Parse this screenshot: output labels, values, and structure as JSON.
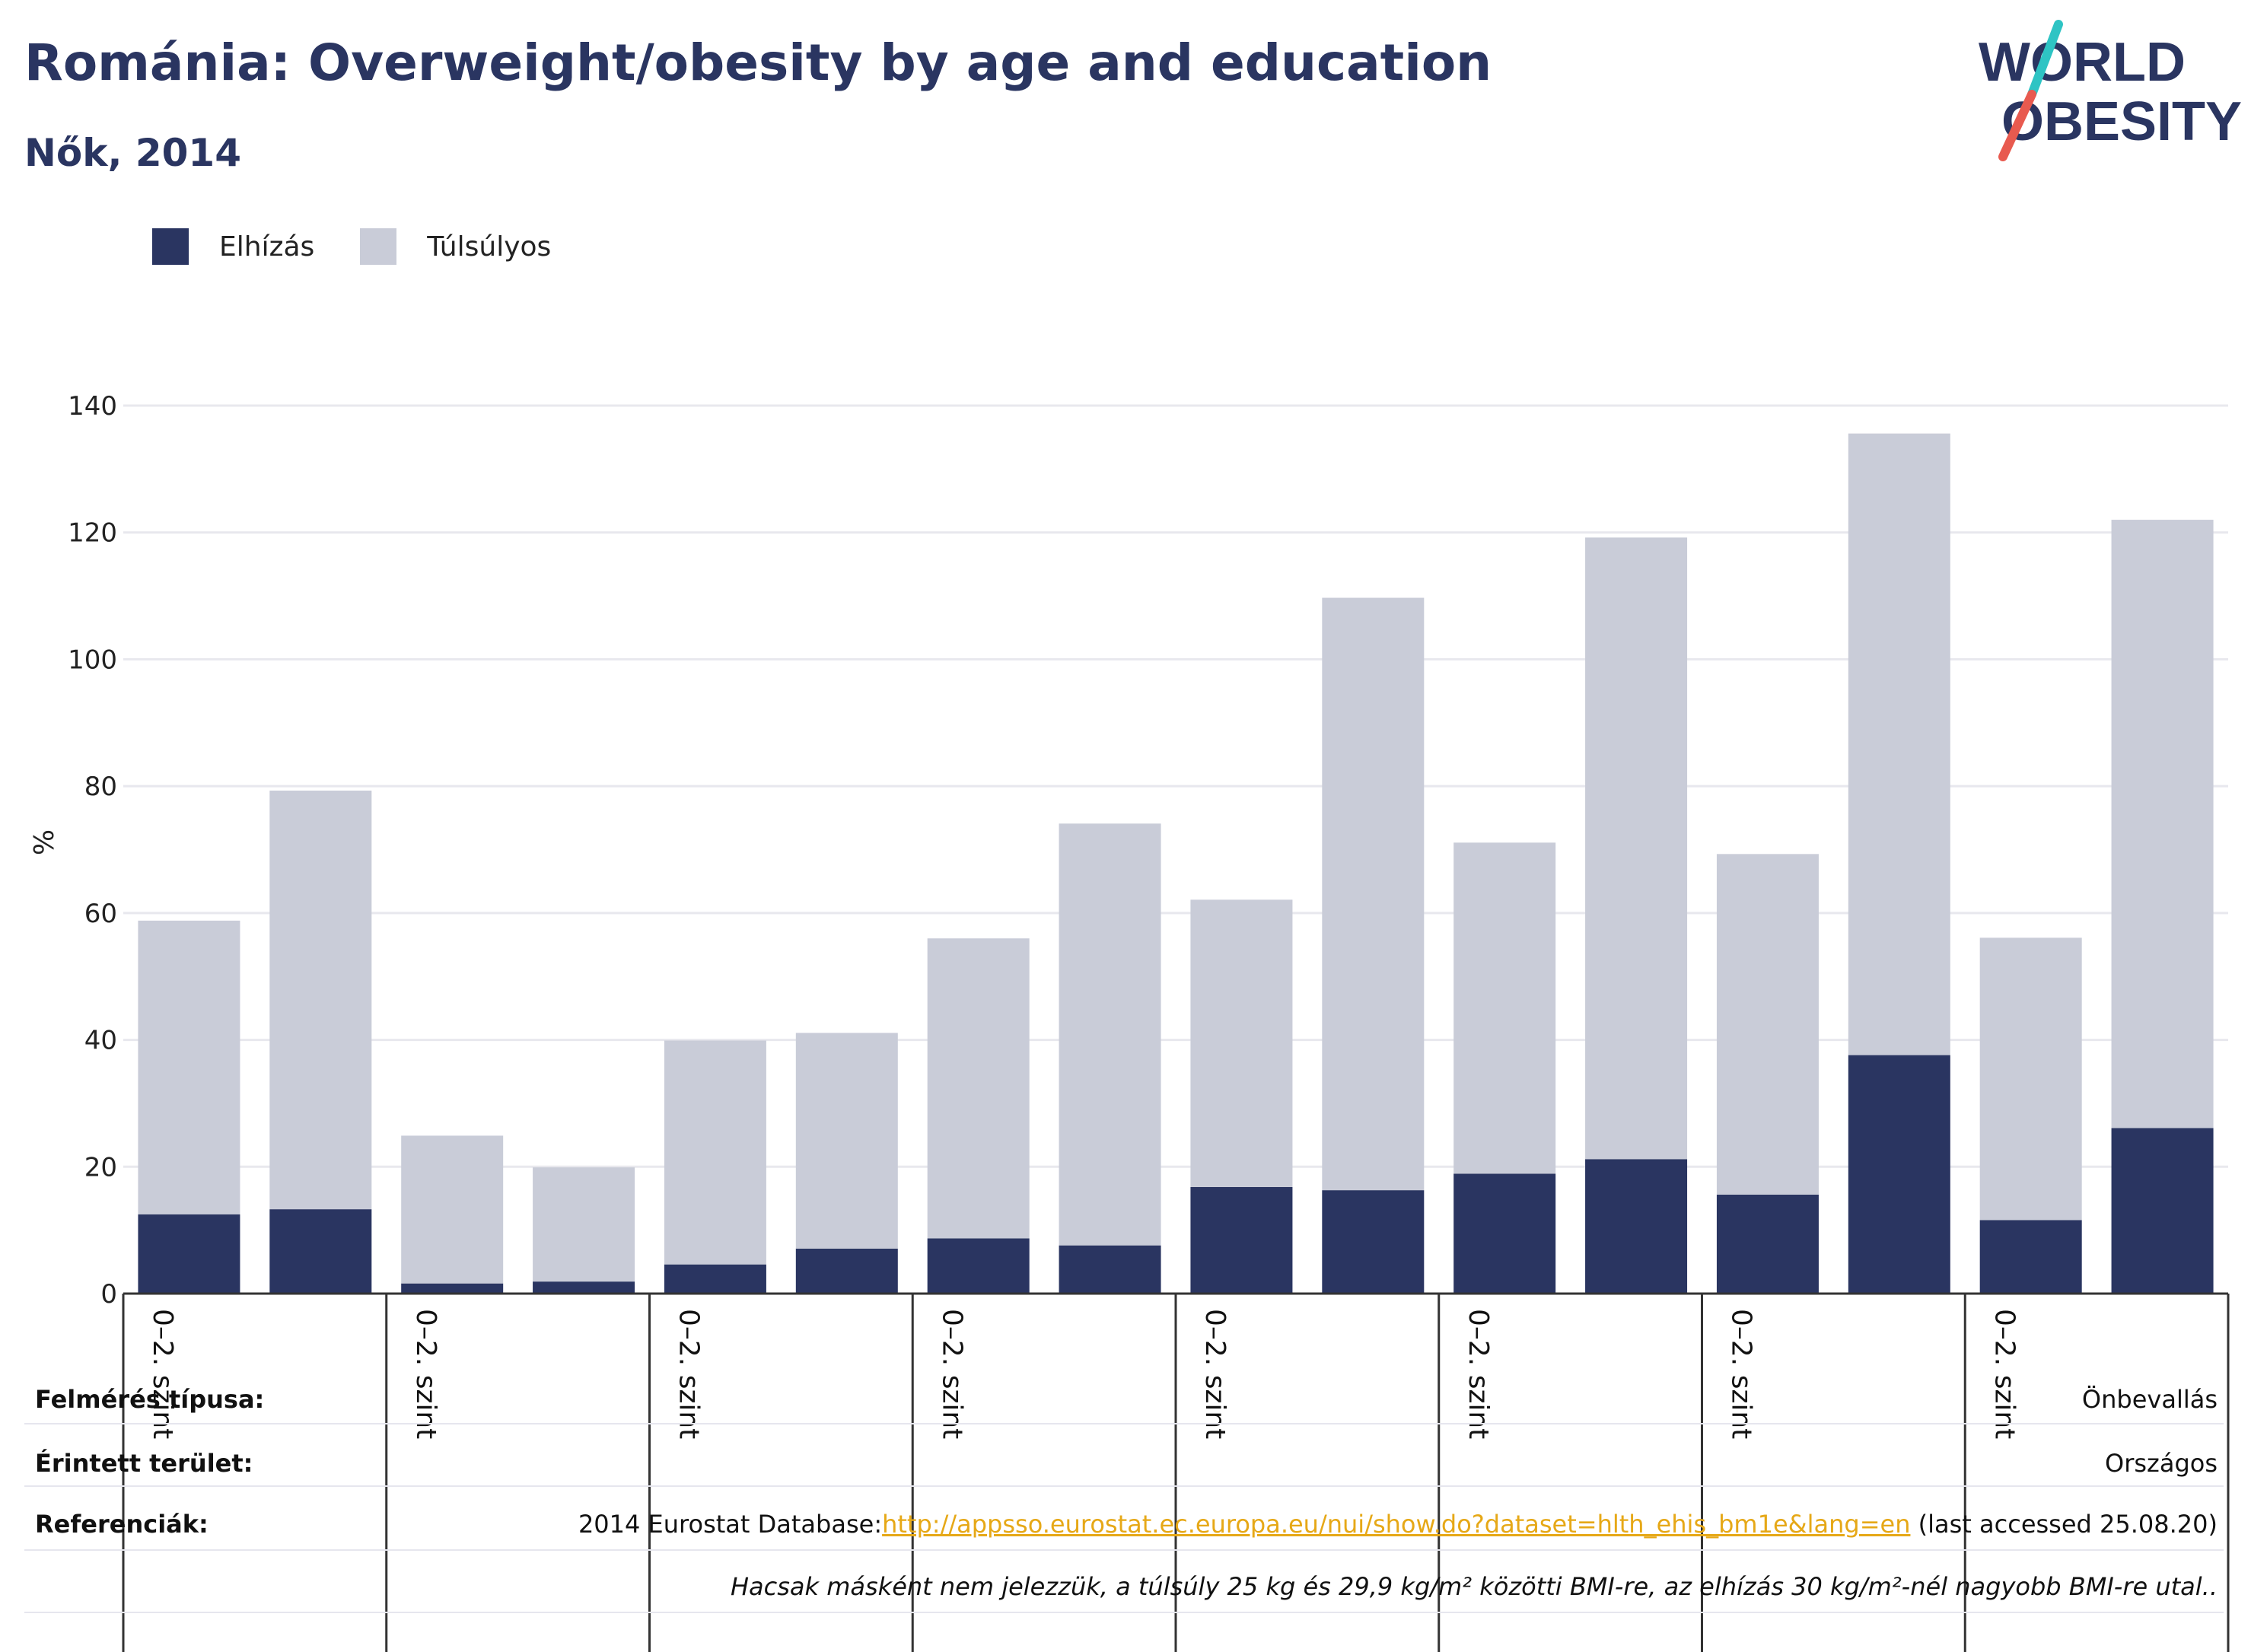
{
  "header": {
    "title": "Románia: Overweight/obesity by age and education",
    "subtitle": "Nők, 2014"
  },
  "logo": {
    "line1": "WORLD",
    "line2": "OBESITY",
    "colors": {
      "text": "#2a3561",
      "slash_top": "#2ec4c4",
      "slash_bottom": "#e85a4f"
    }
  },
  "legend": [
    {
      "label": "Elhízás",
      "color": "#2a3561"
    },
    {
      "label": "Túlsúlyos",
      "color": "#c9ccd8"
    }
  ],
  "chart_data": {
    "type": "bar",
    "stacked": true,
    "ylabel": "%",
    "ylim": [
      0,
      140
    ],
    "yticks": [
      0,
      20,
      40,
      60,
      80,
      100,
      120,
      140
    ],
    "grid": true,
    "legend_position": "top-left",
    "group_labels": [
      "0–2. szint",
      "0–2. szint",
      "0–2. szint",
      "0–2. szint",
      "0–2. szint",
      "0–2. szint",
      "0–2. szint",
      "0–2. szint"
    ],
    "series": [
      {
        "name": "Elhízás",
        "color": "#2a3561",
        "values": [
          12.5,
          13.3,
          1.6,
          1.9,
          4.6,
          7.1,
          8.7,
          7.6,
          16.8,
          16.3,
          18.9,
          21.2,
          15.6,
          37.6,
          11.6,
          26.1
        ]
      },
      {
        "name": "Túlsúlyos",
        "color": "#c9ccd8",
        "values": [
          46.3,
          66.0,
          23.3,
          18.0,
          35.3,
          34.0,
          47.3,
          66.5,
          45.3,
          93.4,
          52.2,
          98.0,
          53.7,
          98.0,
          44.5,
          95.9
        ]
      }
    ]
  },
  "meta": {
    "survey_type": {
      "label": "Felmérés típusa:",
      "value": "Önbevallás"
    },
    "coverage": {
      "label": "Érintett terület:",
      "value": "Országos"
    },
    "references": {
      "label": "Referenciák:",
      "prefix": "2014 Eurostat Database:",
      "link": "http://appsso.eurostat.ec.europa.eu/nui/show.do?dataset=hlth_ehis_bm1e&lang=en",
      "suffix": " (last accessed 25.08.20)"
    },
    "note": "Hacsak másként nem jelezzük, a túlsúly 25 kg és 29,9 kg/m² közötti BMI-re, az elhízás 30 kg/m²-nél nagyobb BMI-re utal.."
  }
}
